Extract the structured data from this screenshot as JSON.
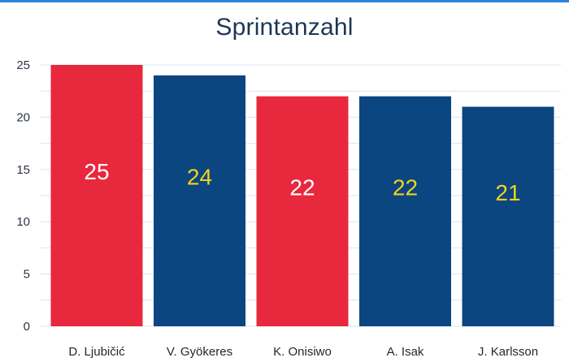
{
  "chart_data": {
    "type": "bar",
    "title": "Sprintanzahl",
    "categories": [
      "D. Ljubičić",
      "V. Gyökeres",
      "K. Onisiwo",
      "A. Isak",
      "J. Karlsson"
    ],
    "values": [
      25,
      24,
      22,
      22,
      21
    ],
    "bar_colors": [
      "#e8283c",
      "#0b4680",
      "#e8283c",
      "#0b4680",
      "#0b4680"
    ],
    "value_label_colors": [
      "#ffffff",
      "#f3d21c",
      "#ffffff",
      "#f3d21c",
      "#f3d21c"
    ],
    "ylim": [
      0,
      25
    ],
    "yticks": [
      0,
      5,
      10,
      15,
      20,
      25
    ],
    "grid": true,
    "gridline_color": "#d4e6f6",
    "xlabel": "",
    "ylabel": ""
  }
}
